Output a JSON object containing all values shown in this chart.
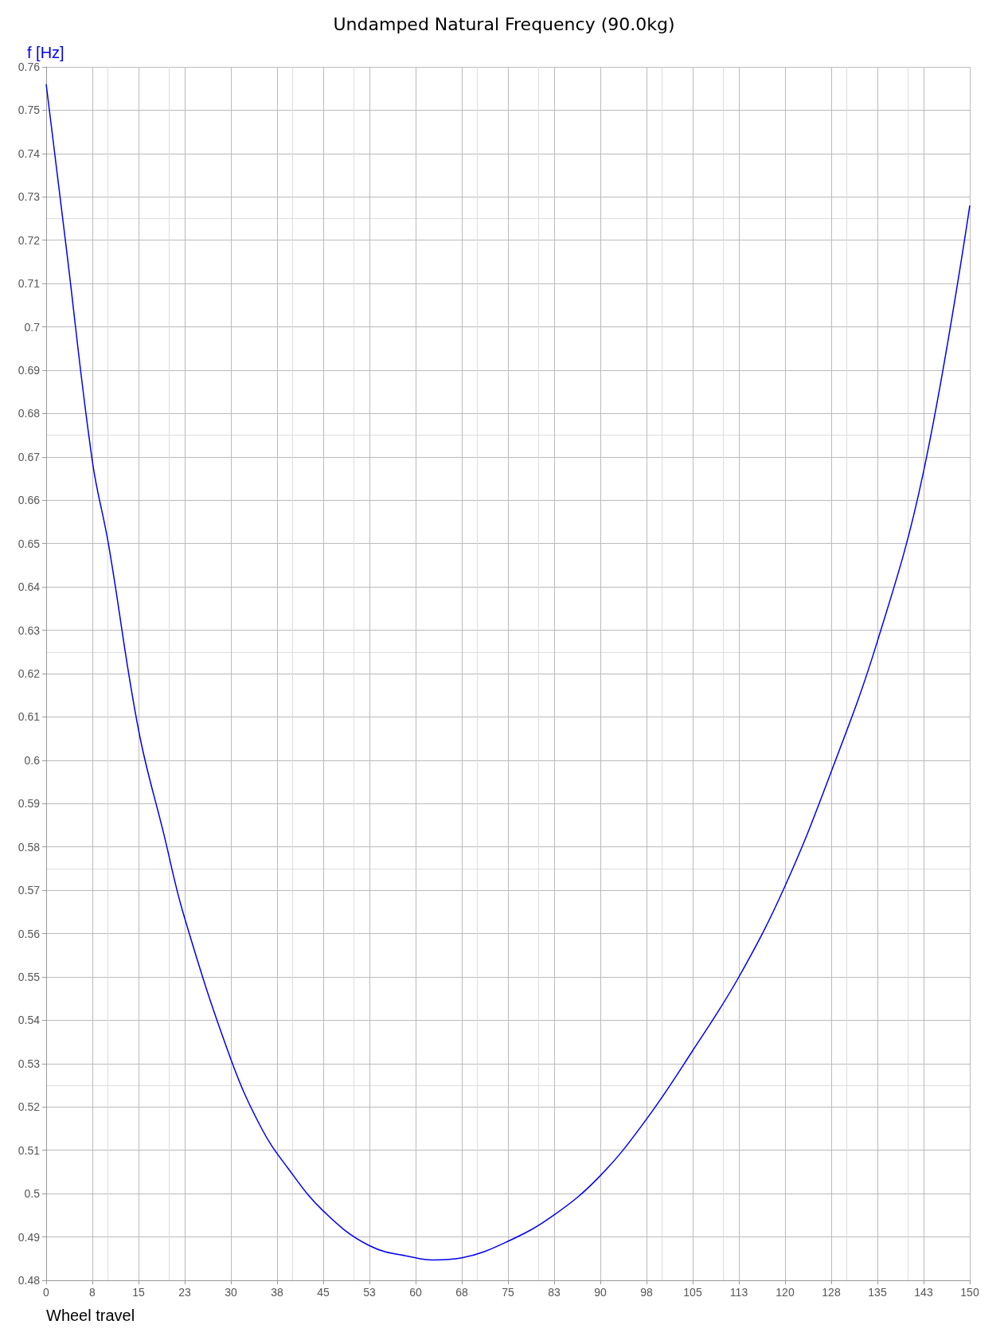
{
  "chart_data": {
    "type": "line",
    "title": "Undamped Natural Frequency (90.0kg)",
    "xlabel": "Wheel travel",
    "ylabel": "f [Hz]",
    "x": [
      0,
      3.2,
      7.5,
      10.1,
      15,
      19.1,
      22.4,
      30,
      35,
      39.2,
      45,
      52.5,
      60,
      62.7,
      67.5,
      75,
      82.4,
      89.9,
      97.4,
      105,
      112.5,
      120,
      127.4,
      134.9,
      142.4,
      150
    ],
    "series": [
      {
        "color": "#0000ee",
        "values": [
          0.756,
          0.719,
          0.669,
          0.65,
          0.607,
          0.583,
          0.564,
          0.531,
          0.515,
          0.506,
          0.496,
          0.488,
          0.4852,
          0.4847,
          0.4852,
          0.489,
          0.495,
          0.504,
          0.517,
          0.533,
          0.55,
          0.571,
          0.597,
          0.627,
          0.666,
          0.728
        ]
      }
    ],
    "xlim": [
      0,
      150
    ],
    "xticks": [
      0,
      {
        "value": 7.5,
        "label": "8"
      },
      15,
      {
        "value": 22.5,
        "label": "23"
      },
      30,
      {
        "value": 37.5,
        "label": "38"
      },
      45,
      {
        "value": 52.5,
        "label": "53"
      },
      60,
      {
        "value": 67.5,
        "label": "68"
      },
      75,
      {
        "value": 82.5,
        "label": "83"
      },
      90,
      {
        "value": 97.5,
        "label": "98"
      },
      105,
      {
        "value": 112.5,
        "label": "113"
      },
      120,
      {
        "value": 127.5,
        "label": "128"
      },
      135,
      {
        "value": 142.5,
        "label": "143"
      },
      150
    ],
    "ylim": [
      0.48,
      0.76
    ],
    "yticks": [
      0.48,
      0.49,
      0.5,
      0.51,
      0.52,
      0.53,
      0.54,
      0.55,
      0.56,
      0.57,
      0.58,
      0.59,
      0.6,
      0.61,
      0.62,
      0.63,
      0.64,
      0.65,
      0.66,
      0.67,
      0.68,
      0.69,
      0.7,
      0.71,
      0.72,
      0.73,
      0.74,
      0.75,
      0.76
    ],
    "grid": true,
    "marker": "none",
    "line_style": "solid"
  }
}
